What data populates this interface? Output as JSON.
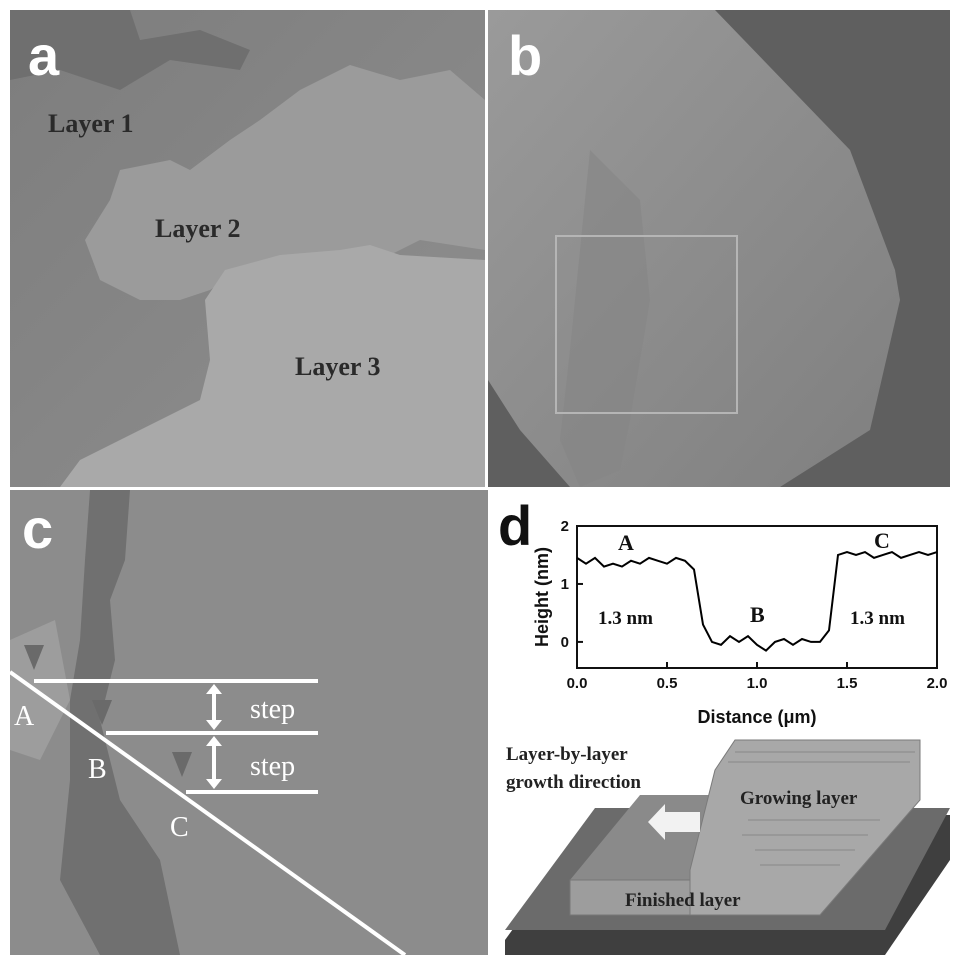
{
  "panel_a": {
    "letter": "a",
    "labels": [
      "Layer 1",
      "Layer 2",
      "Layer 3"
    ]
  },
  "panel_b": {
    "letter": "b"
  },
  "panel_c": {
    "letter": "c",
    "points": [
      "A",
      "B",
      "C"
    ],
    "steps": [
      "step",
      "step"
    ]
  },
  "chart_data": {
    "type": "line",
    "letter": "d",
    "x_label": "Distance (μm)",
    "y_label": "Height (nm)",
    "x": [
      0,
      0.05,
      0.1,
      0.15,
      0.2,
      0.25,
      0.3,
      0.35,
      0.4,
      0.45,
      0.5,
      0.55,
      0.6,
      0.65,
      0.7,
      0.75,
      0.8,
      0.85,
      0.9,
      0.95,
      1.0,
      1.05,
      1.1,
      1.15,
      1.2,
      1.25,
      1.3,
      1.35,
      1.4,
      1.45,
      1.5,
      1.55,
      1.6,
      1.65,
      1.7,
      1.75,
      1.8,
      1.85,
      1.9,
      1.95,
      2.0
    ],
    "values": [
      1.45,
      1.35,
      1.45,
      1.3,
      1.35,
      1.3,
      1.4,
      1.35,
      1.45,
      1.4,
      1.35,
      1.45,
      1.4,
      1.25,
      0.3,
      0.0,
      -0.05,
      0.1,
      0.0,
      0.1,
      -0.05,
      -0.15,
      0.0,
      0.05,
      -0.05,
      0.05,
      0.0,
      0.0,
      0.2,
      1.5,
      1.55,
      1.5,
      1.55,
      1.45,
      1.5,
      1.55,
      1.45,
      1.5,
      1.55,
      1.5,
      1.55
    ],
    "color": "#000000",
    "xlim": [
      0,
      2.0
    ],
    "xticks": [
      {
        "value": 0,
        "label": "0.0"
      },
      {
        "value": 0.5,
        "label": "0.5"
      },
      {
        "value": 1.0,
        "label": "1.0"
      },
      {
        "value": 1.5,
        "label": "1.5"
      },
      {
        "value": 2.0,
        "label": "2.0"
      }
    ],
    "ylim": [
      -0.45,
      2
    ],
    "yticks": [
      0,
      1,
      2
    ],
    "annotations": [
      "A",
      "B",
      "C",
      "1.3 nm",
      "1.3 nm"
    ]
  },
  "schematic": {
    "direction": [
      "Layer-by-layer",
      "growth direction"
    ],
    "growing": "Growing layer",
    "finished": "Finished layer"
  }
}
